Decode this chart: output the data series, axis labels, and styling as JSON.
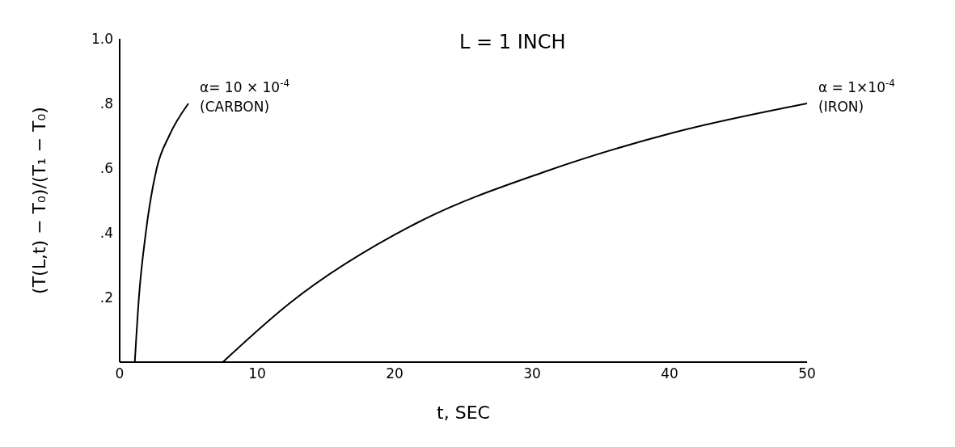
{
  "chart_data": {
    "type": "line",
    "xlabel": "t, SEC",
    "ylabel": "(T(L,t) − T₀)/(T₁ − T₀)",
    "annotations": [
      "L = 1 INCH"
    ],
    "series": [
      {
        "name": "α= 10 × 10$^{-4}$ (CARBON)",
        "color": "#000000",
        "x": [
          1.1,
          1.4,
          1.9,
          2.7,
          3.6,
          5.0
        ],
        "values": [
          0,
          0.2,
          0.4,
          0.6,
          0.7,
          0.8
        ]
      },
      {
        "name": "α = 1×10$^{-4}$ (IRON)",
        "color": "#000000",
        "x": [
          7.5,
          12.3,
          21.6,
          31,
          40.3,
          50
        ],
        "values": [
          0,
          0.18,
          0.43,
          0.59,
          0.71,
          0.8
        ]
      }
    ],
    "xlim": [
      0,
      50
    ],
    "xticks": [
      0,
      10,
      20,
      30,
      40,
      50
    ],
    "ylim": [
      0,
      1
    ],
    "yticks": [
      {
        "value": 0,
        "label": null
      },
      {
        "value": 0.2,
        "label": ".2"
      },
      {
        "value": 0.4,
        "label": ".4"
      },
      {
        "value": 0.6,
        "label": ".6"
      },
      {
        "value": 0.8,
        "label": ".8"
      },
      {
        "value": 1,
        "label": "1.0"
      }
    ],
    "grid": false,
    "legend": false,
    "marker": "none",
    "line_style": "solid"
  }
}
